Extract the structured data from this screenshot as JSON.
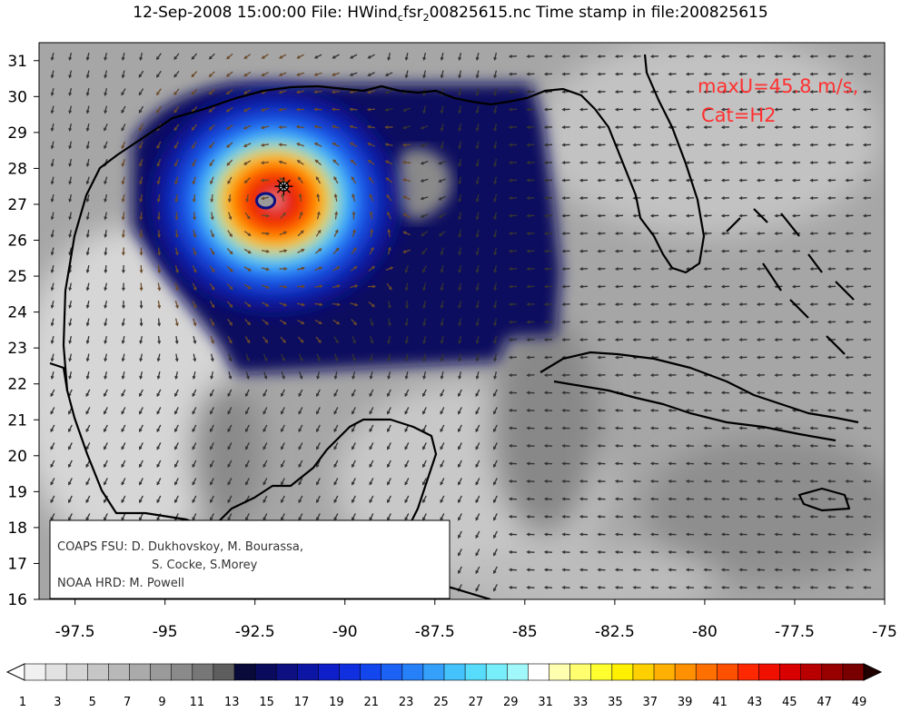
{
  "title": {
    "before": "12-Sep-2008 15:00:00 File: HWind",
    "sub1": "c",
    "mid": "fsr",
    "sub2": "2",
    "after": "00825615.nc Time stamp in file:200825615"
  },
  "annotation": {
    "line1": "maxU=45.8 m/s,",
    "line2": "Cat=H2",
    "color": "#ff3030"
  },
  "credits": {
    "line1": "COAPS FSU: D. Dukhovskoy, M. Bourassa,",
    "line2": "S. Cocke, S.Morey",
    "line3": "NOAA HRD:  M. Powell"
  },
  "axes": {
    "x_ticks": [
      "-97.5",
      "-95",
      "-92.5",
      "-90",
      "-87.5",
      "-85",
      "-82.5",
      "-80",
      "-77.5",
      "-75"
    ],
    "y_ticks": [
      "31",
      "30",
      "29",
      "28",
      "27",
      "26",
      "25",
      "24",
      "23",
      "22",
      "21",
      "20",
      "19",
      "18",
      "17",
      "16"
    ],
    "x_range": [
      -98.5,
      -75
    ],
    "y_range": [
      16,
      31.5
    ]
  },
  "storm": {
    "lon": -92.2,
    "lat": 27.1,
    "marker_lon": -91.7,
    "marker_lat": 27.5
  },
  "colorbar": {
    "labels": [
      "1",
      "3",
      "5",
      "7",
      "9",
      "11",
      "13",
      "15",
      "17",
      "19",
      "21",
      "23",
      "25",
      "27",
      "29",
      "31",
      "33",
      "35",
      "37",
      "39",
      "41",
      "43",
      "45",
      "47",
      "49"
    ],
    "colors": [
      "#f0f0f0",
      "#e2e2e2",
      "#d4d4d4",
      "#c6c6c6",
      "#b8b8b8",
      "#aaaaaa",
      "#9a9a9a",
      "#8a8a8a",
      "#777777",
      "#5e5e5e",
      "#0a0a3a",
      "#0b0b5e",
      "#0c1080",
      "#0d16a4",
      "#0e1ec8",
      "#1030e0",
      "#1446ee",
      "#1c62f4",
      "#2680f8",
      "#34a0fa",
      "#44c2fb",
      "#58dcfb",
      "#78eefb",
      "#a0f8fb",
      "#ffffff",
      "#ffffb0",
      "#ffff70",
      "#ffff30",
      "#fff000",
      "#ffd000",
      "#ffb000",
      "#ff9000",
      "#ff7000",
      "#ff5000",
      "#ff2800",
      "#f01000",
      "#d80000",
      "#b80000",
      "#980000",
      "#780000"
    ]
  }
}
